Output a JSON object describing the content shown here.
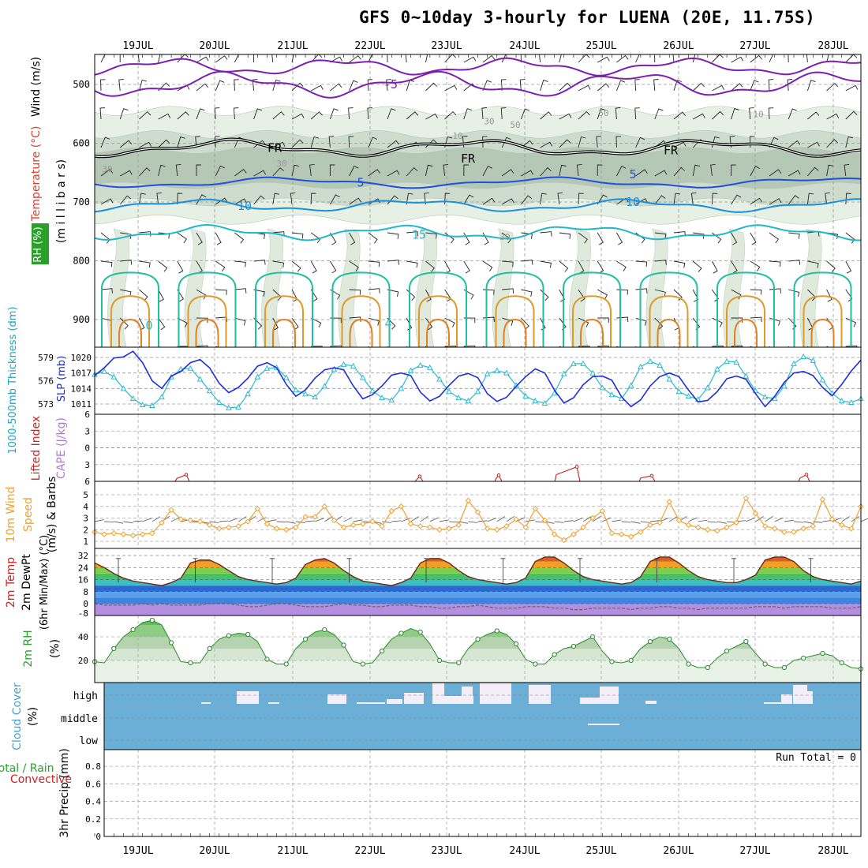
{
  "title": "GFS 0~10day 3-hourly for LUENA (20E, 11.75S)",
  "run_total": "Run Total = 0",
  "dates": [
    "19JUL",
    "20JUL",
    "21JUL",
    "22JUL",
    "23JUL",
    "24JUL",
    "25JUL",
    "26JUL",
    "27JUL",
    "28JUL"
  ],
  "panels": {
    "upper": {
      "label_wind": "Wind (m/s)",
      "label_temp": "Temperature (°C)",
      "label_rh": "RH (%)",
      "label_mb": "(m i l l i b a r s)"
    },
    "pressure": {
      "label_thick": "1000-500mb Thickness (dm)",
      "label_slp": "SLP (mb)"
    },
    "stability": {
      "label_li": "Lifted Index",
      "label_cape": "CAPE (J/kg)"
    },
    "wind10": {
      "label_a": "10m Wind",
      "label_b": "Speed",
      "label_c": "(m/s) & Barbs"
    },
    "temp": {
      "label_a": "2m Temp",
      "label_b": "2m DewPt",
      "label_c": "(6hr Min/Max) (°C)"
    },
    "rh": {
      "label_a": "2m RH",
      "label_b": "(%)"
    },
    "cloud": {
      "label_a": "Cloud Cover",
      "label_b": "(%)",
      "levels": [
        "high",
        "middle",
        "low"
      ]
    },
    "precip": {
      "label_a": "Total / Rain",
      "label_b": "Convective",
      "label_c": "3hr Precip (mm)"
    }
  },
  "chart_data": [
    {
      "type": "contour",
      "name": "upper_air",
      "ylabel": "(m i l l i b a r s)",
      "yticks": [
        500,
        600,
        700,
        800,
        900
      ],
      "contour_labels": [
        "-5",
        "FR",
        "FR",
        "FR",
        "5",
        "5",
        "10",
        "10",
        "15",
        "0",
        "4",
        "10",
        "30",
        "30",
        "30",
        "50",
        "50",
        "10",
        "30",
        "30"
      ],
      "isotherms_mb": [
        {
          "t": "-5",
          "mb": 500
        },
        {
          "t": "FR",
          "mb": 608
        },
        {
          "t": "5",
          "mb": 667
        },
        {
          "t": "10",
          "mb": 706
        },
        {
          "t": "15",
          "mb": 752
        }
      ]
    },
    {
      "type": "line",
      "name": "thickness_slp",
      "ylabel": "1000-500mb Thickness (dm)",
      "yticks_thick": [
        573,
        576,
        579
      ],
      "yticks_slp": [
        1011,
        1014,
        1017,
        1020
      ],
      "series": [
        {
          "name": "SLP (mb)",
          "values": [
            1016.5,
            1018,
            1019.9,
            1020.1,
            1021.2,
            1019,
            1015.5,
            1014,
            1016.4,
            1017.3,
            1019,
            1019.6,
            1018,
            1015,
            1013.2,
            1014.2,
            1016,
            1018.3,
            1019,
            1018,
            1014.8,
            1012.5,
            1013.7,
            1016,
            1017.6,
            1018,
            1017.6,
            1014.5,
            1012,
            1012.8,
            1014.5,
            1016.6,
            1017,
            1016.5,
            1013.3,
            1011.6,
            1012.5,
            1014.6,
            1016.4,
            1016.9,
            1016.1,
            1013,
            1011.5,
            1012.3,
            1014.4,
            1016.3,
            1017.8,
            1017,
            1013.7,
            1011.2,
            1012.2,
            1014.7,
            1016.3,
            1016.4,
            1015.6,
            1012.4,
            1010.5,
            1011.8,
            1014.5,
            1016.3,
            1017,
            1016.3,
            1013.7,
            1011.4,
            1011.7,
            1013.4,
            1015.9,
            1016.4,
            1015.8,
            1013,
            1010.5,
            1012.5,
            1015.2,
            1017,
            1017.3,
            1016.5,
            1014.2,
            1012.6,
            1014.8,
            1017.4,
            1019.5
          ]
        },
        {
          "name": "Thickness (dm)",
          "values": [
            576.8,
            577.2,
            576.5,
            575,
            573.7,
            572.9,
            572.8,
            573.9,
            576.5,
            577.5,
            577.6,
            576.2,
            574.7,
            573.2,
            572.5,
            572.6,
            574.3,
            576.5,
            577.6,
            577.7,
            576.4,
            574.8,
            574.3,
            573.9,
            575.3,
            577.5,
            578.1,
            577.9,
            576.4,
            574.7,
            573.8,
            573.5,
            575,
            577.3,
            578,
            577.7,
            576.2,
            574.6,
            573.8,
            573.4,
            574.6,
            576.9,
            577.3,
            577,
            575.4,
            574,
            573.4,
            573.1,
            574.4,
            576.9,
            578.2,
            578.2,
            577,
            575.1,
            574.2,
            573.7,
            575.4,
            577.8,
            578.5,
            578,
            576.2,
            574.6,
            574,
            573.6,
            575.1,
            577.5,
            578.5,
            578.4,
            576.6,
            574.7,
            573.9,
            573.7,
            575.3,
            578.2,
            579.1,
            578.6,
            576.1,
            574.4,
            573.4,
            573.2,
            573.7
          ]
        }
      ]
    },
    {
      "type": "line",
      "name": "lifted_index_cape",
      "yticks": [
        "-6",
        "-3",
        "0",
        "3",
        "6"
      ],
      "markers": [
        [
          "19JUL",
          "6"
        ],
        [
          "21JUL",
          "6"
        ],
        [
          "23JUL",
          "6"
        ],
        [
          "24JUL",
          "6"
        ],
        [
          "25JUL",
          "6"
        ],
        [
          "26JUL",
          "6"
        ],
        [
          "28JUL",
          "6"
        ]
      ]
    },
    {
      "type": "line",
      "name": "wind10m",
      "ylabel": "Speed (m/s) & Barbs",
      "yticks": [
        1,
        2,
        3,
        4,
        5
      ],
      "series": [
        {
          "name": "10m Wind Speed",
          "values": [
            1.8,
            1.6,
            1.7,
            1.6,
            1.5,
            1.6,
            1.7,
            2.6,
            3.7,
            2.9,
            2.8,
            2.7,
            2.4,
            2.1,
            2.2,
            2.3,
            2.7,
            3.8,
            2.5,
            2.1,
            2.0,
            2.2,
            3.1,
            3.1,
            4.0,
            2.8,
            2.2,
            2.4,
            2.5,
            2.7,
            2.3,
            3.6,
            4.0,
            2.5,
            2.3,
            2.2,
            2.0,
            2.1,
            2.4,
            4.5,
            3.5,
            2.1,
            2.0,
            2.3,
            2.9,
            2.2,
            3.8,
            2.8,
            1.6,
            1.1,
            1.6,
            2.2,
            3.0,
            3.6,
            1.7,
            1.6,
            1.4,
            1.8,
            2.4,
            2.6,
            4.4,
            2.8,
            2.4,
            2.2,
            2.0,
            1.9,
            2.2,
            2.6,
            4.7,
            3.4,
            2.3,
            2.1,
            1.8,
            1.8,
            2.1,
            2.3,
            4.6,
            2.9,
            2.4,
            2.1,
            4.0
          ]
        }
      ]
    },
    {
      "type": "area",
      "name": "temp_dewpoint",
      "ylabel": "(6hr Min/Max) (°C)",
      "yticks": [
        0,
        8,
        16,
        24,
        32
      ],
      "series": [
        {
          "name": "2m Temp",
          "values": [
            27,
            24,
            20,
            17,
            15,
            14,
            13,
            12,
            14,
            17,
            27,
            29,
            29,
            26,
            22,
            18,
            16,
            15,
            14,
            13,
            14,
            17,
            26,
            29,
            30,
            27,
            22,
            18,
            15,
            14,
            13,
            12,
            14,
            17,
            27,
            30,
            30,
            27,
            22,
            18,
            16,
            15,
            14,
            13,
            14,
            17,
            28,
            31,
            31,
            27,
            22,
            18,
            16,
            15,
            14,
            13,
            14,
            18,
            28,
            31,
            31,
            27,
            22,
            18,
            16,
            15,
            14,
            14,
            16,
            19,
            29,
            31,
            31,
            28,
            22,
            18,
            16,
            15,
            14,
            13,
            15
          ]
        },
        {
          "name": "2m DewPt",
          "values": [
            0,
            -1,
            -1,
            -1,
            -1,
            0,
            -1,
            0,
            -1,
            -1,
            -1,
            -1,
            0,
            0,
            0,
            -1,
            -2,
            -2,
            -1,
            0,
            0,
            -1,
            -2,
            -2,
            -2,
            -1,
            0,
            -1,
            -1,
            -2,
            -2,
            -1,
            -1,
            -1,
            -2,
            -2,
            -3,
            -3,
            -2,
            -2,
            -1,
            -2,
            -3,
            -3,
            -3,
            -2,
            -2,
            -2,
            -3,
            -3,
            -4,
            -4,
            -3,
            -3,
            -3,
            -3,
            -4,
            -3,
            -3,
            -2,
            -2,
            -3,
            -3,
            -4,
            -3,
            -3,
            -3,
            -3,
            -3,
            -2,
            -2,
            -2,
            -3,
            -2,
            -2,
            -2,
            -2,
            -3,
            -3,
            -3,
            -2
          ]
        }
      ]
    },
    {
      "type": "area",
      "name": "rh2m",
      "ylabel": "2m RH (%)",
      "yticks": [
        20,
        40
      ],
      "series": [
        {
          "name": "2m RH",
          "values": [
            19,
            18,
            30,
            40,
            46,
            52,
            54,
            50,
            35,
            19,
            18,
            18,
            30,
            38,
            41,
            43,
            42,
            36,
            21,
            17,
            17,
            30,
            38,
            44,
            46,
            42,
            33,
            19,
            17,
            18,
            28,
            38,
            43,
            47,
            44,
            34,
            20,
            18,
            18,
            30,
            38,
            42,
            45,
            42,
            34,
            21,
            17,
            17,
            25,
            30,
            32,
            36,
            40,
            28,
            19,
            18,
            20,
            30,
            36,
            40,
            38,
            30,
            17,
            14,
            14,
            22,
            28,
            32,
            36,
            26,
            17,
            14,
            14,
            20,
            22,
            24,
            26,
            24,
            18,
            14,
            13
          ]
        }
      ]
    },
    {
      "type": "bar",
      "name": "cloud_cover",
      "levels": [
        "high",
        "middle",
        "low"
      ]
    },
    {
      "type": "bar",
      "name": "precip_3hr",
      "ylabel": "3hr Precip (mm)",
      "yticks": [
        0,
        0.2,
        0.4,
        0.6,
        0.8
      ],
      "values": [],
      "note_total": "Run Total = 0"
    }
  ],
  "colors": {
    "slp": "#1d2ed9",
    "thickness": "#2bbbd0",
    "wind": "#f0a030",
    "rh_fill": "#7ec87e",
    "cloud_bg": "#6baed6",
    "title": "#000000"
  }
}
